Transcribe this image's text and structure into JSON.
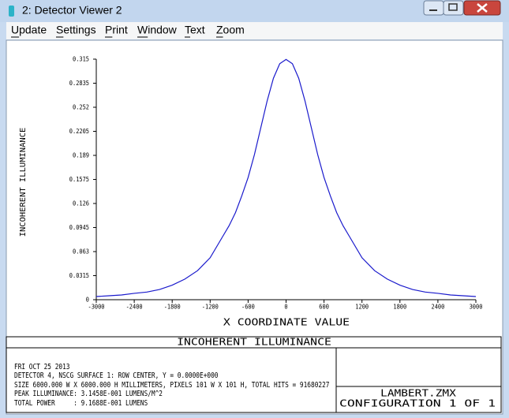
{
  "window": {
    "title": "2: Detector Viewer 2",
    "menu": [
      "Update",
      "Settings",
      "Print",
      "Window",
      "Text",
      "Zoom"
    ]
  },
  "chart_data": {
    "type": "line",
    "x_label": "X COORDINATE VALUE",
    "y_label": "INCOHERENT ILLUMINANCE",
    "x": [
      -3000,
      -2800,
      -2600,
      -2400,
      -2200,
      -2000,
      -1800,
      -1600,
      -1400,
      -1200,
      -1000,
      -900,
      -800,
      -700,
      -600,
      -500,
      -400,
      -300,
      -200,
      -100,
      0,
      100,
      200,
      300,
      400,
      500,
      600,
      700,
      800,
      900,
      1000,
      1200,
      1400,
      1600,
      1800,
      2000,
      2200,
      2400,
      2600,
      2800,
      3000
    ],
    "values": [
      0.0041,
      0.0052,
      0.0062,
      0.0083,
      0.01,
      0.0134,
      0.019,
      0.027,
      0.038,
      0.055,
      0.083,
      0.097,
      0.114,
      0.136,
      0.16,
      0.19,
      0.225,
      0.26,
      0.29,
      0.309,
      0.3146,
      0.309,
      0.29,
      0.26,
      0.225,
      0.19,
      0.16,
      0.136,
      0.114,
      0.097,
      0.083,
      0.055,
      0.038,
      0.027,
      0.019,
      0.0134,
      0.01,
      0.0083,
      0.0062,
      0.0052,
      0.0041
    ],
    "color": "#1a1acc",
    "xlim": [
      -3000,
      3000
    ],
    "ylim": [
      0,
      0.315
    ],
    "xticks": [
      -3000,
      -2400,
      -1800,
      -1200,
      -600,
      0,
      600,
      1200,
      1800,
      2400,
      3000
    ],
    "yticks": [
      0,
      0.0315,
      0.063,
      0.0945,
      0.126,
      0.1575,
      0.189,
      0.2205,
      0.252,
      0.2835,
      0.315
    ]
  },
  "footer": {
    "title": "INCOHERENT ILLUMINANCE",
    "lines": [
      "FRI OCT 25 2013",
      "DETECTOR 4, NSCG SURFACE 1: ROW CENTER, Y = 0.0000E+000",
      "SIZE 6000.000 W X 6000.000 H MILLIMETERS, PIXELS 101 W X 101 H, TOTAL HITS = 91680227",
      "PEAK ILLUMINANCE: 3.1458E-001 LUMENS/M^2",
      "TOTAL POWER     : 9.1688E-001 LUMENS"
    ],
    "file": "LAMBERT.ZMX",
    "configuration": "CONFIGURATION 1 OF 1"
  }
}
